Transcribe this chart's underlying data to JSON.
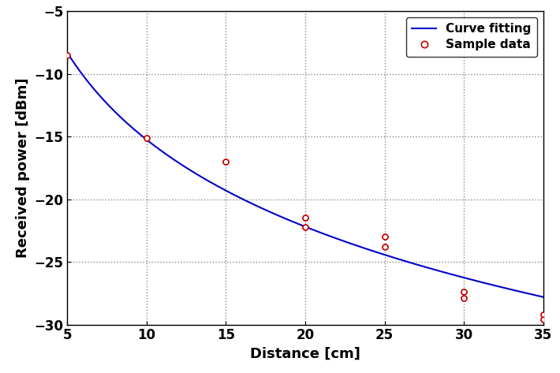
{
  "title": "",
  "xlabel": "Distance [cm]",
  "ylabel": "Received power [dBm]",
  "xlim": [
    5,
    35
  ],
  "ylim": [
    -30,
    -5
  ],
  "xticks": [
    5,
    10,
    15,
    20,
    25,
    30,
    35
  ],
  "yticks": [
    -30,
    -25,
    -20,
    -15,
    -10,
    -5
  ],
  "curve_color": "#0000cc",
  "sample_color": "#cc0000",
  "background_color": "#ffffff",
  "legend_labels": [
    "Curve fitting",
    "Sample data"
  ],
  "sample_data_x": [
    5,
    10,
    15,
    20,
    20,
    25,
    25,
    30,
    30,
    35,
    35
  ],
  "sample_data_y": [
    -8.5,
    -15.1,
    -17.0,
    -21.5,
    -22.2,
    -23.0,
    -23.8,
    -27.4,
    -27.9,
    -29.2,
    -29.6
  ],
  "curve_d0": 5.0,
  "curve_P0": -8.3,
  "curve_n": 2.308,
  "grid_color": "#888888",
  "grid_style": "dotted",
  "figsize": [
    7.1,
    4.73
  ],
  "dpi": 100
}
